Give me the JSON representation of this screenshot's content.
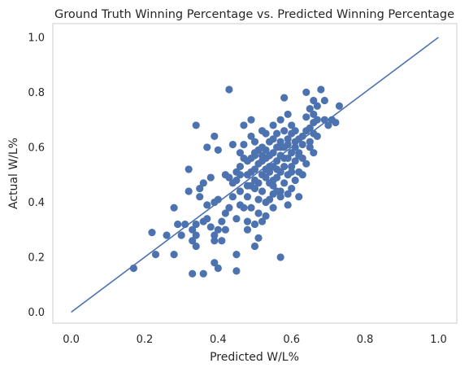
{
  "chart_data": {
    "type": "scatter",
    "title": "Ground Truth Winning Percentage vs. Predicted Winning Percentage",
    "xlabel": "Predicted W/L%",
    "ylabel": "Actual W/L%",
    "xlim": [
      -0.05,
      1.05
    ],
    "ylim": [
      -0.04,
      1.05
    ],
    "xticks": [
      "0.0",
      "0.2",
      "0.4",
      "0.6",
      "0.8",
      "1.0"
    ],
    "yticks": [
      "0.0",
      "0.2",
      "0.4",
      "0.6",
      "0.8",
      "1.0"
    ],
    "grid": false,
    "legend": false,
    "colors": {
      "points": "#4c72b0",
      "line": "#4c72b0",
      "frame": "#cccccc",
      "text": "#262626"
    },
    "reference_line": {
      "x": [
        0.0,
        1.0
      ],
      "y": [
        0.0,
        1.0
      ]
    },
    "points": [
      [
        0.17,
        0.16
      ],
      [
        0.22,
        0.29
      ],
      [
        0.23,
        0.21
      ],
      [
        0.26,
        0.28
      ],
      [
        0.28,
        0.21
      ],
      [
        0.28,
        0.38
      ],
      [
        0.29,
        0.32
      ],
      [
        0.3,
        0.28
      ],
      [
        0.31,
        0.32
      ],
      [
        0.32,
        0.44
      ],
      [
        0.32,
        0.52
      ],
      [
        0.33,
        0.14
      ],
      [
        0.33,
        0.26
      ],
      [
        0.33,
        0.3
      ],
      [
        0.34,
        0.24
      ],
      [
        0.34,
        0.28
      ],
      [
        0.34,
        0.32
      ],
      [
        0.34,
        0.68
      ],
      [
        0.35,
        0.42
      ],
      [
        0.35,
        0.45
      ],
      [
        0.36,
        0.14
      ],
      [
        0.36,
        0.33
      ],
      [
        0.36,
        0.47
      ],
      [
        0.37,
        0.34
      ],
      [
        0.37,
        0.39
      ],
      [
        0.37,
        0.6
      ],
      [
        0.38,
        0.31
      ],
      [
        0.38,
        0.49
      ],
      [
        0.39,
        0.18
      ],
      [
        0.39,
        0.26
      ],
      [
        0.39,
        0.28
      ],
      [
        0.39,
        0.4
      ],
      [
        0.39,
        0.64
      ],
      [
        0.4,
        0.16
      ],
      [
        0.4,
        0.3
      ],
      [
        0.4,
        0.41
      ],
      [
        0.4,
        0.59
      ],
      [
        0.41,
        0.26
      ],
      [
        0.42,
        0.3
      ],
      [
        0.42,
        0.36
      ],
      [
        0.42,
        0.5
      ],
      [
        0.43,
        0.81
      ],
      [
        0.43,
        0.49
      ],
      [
        0.44,
        0.42
      ],
      [
        0.44,
        0.61
      ],
      [
        0.45,
        0.15
      ],
      [
        0.45,
        0.21
      ],
      [
        0.45,
        0.34
      ],
      [
        0.45,
        0.51
      ],
      [
        0.46,
        0.39
      ],
      [
        0.46,
        0.44
      ],
      [
        0.46,
        0.5
      ],
      [
        0.46,
        0.53
      ],
      [
        0.47,
        0.56
      ],
      [
        0.47,
        0.61
      ],
      [
        0.47,
        0.68
      ],
      [
        0.48,
        0.3
      ],
      [
        0.48,
        0.33
      ],
      [
        0.48,
        0.42
      ],
      [
        0.48,
        0.46
      ],
      [
        0.48,
        0.5
      ],
      [
        0.49,
        0.38
      ],
      [
        0.49,
        0.51
      ],
      [
        0.49,
        0.56
      ],
      [
        0.49,
        0.64
      ],
      [
        0.49,
        0.7
      ],
      [
        0.5,
        0.24
      ],
      [
        0.5,
        0.32
      ],
      [
        0.5,
        0.45
      ],
      [
        0.5,
        0.48
      ],
      [
        0.5,
        0.52
      ],
      [
        0.5,
        0.57
      ],
      [
        0.5,
        0.62
      ],
      [
        0.51,
        0.27
      ],
      [
        0.51,
        0.41
      ],
      [
        0.51,
        0.47
      ],
      [
        0.51,
        0.54
      ],
      [
        0.51,
        0.59
      ],
      [
        0.52,
        0.33
      ],
      [
        0.52,
        0.44
      ],
      [
        0.52,
        0.5
      ],
      [
        0.52,
        0.55
      ],
      [
        0.52,
        0.6
      ],
      [
        0.53,
        0.35
      ],
      [
        0.53,
        0.49
      ],
      [
        0.53,
        0.52
      ],
      [
        0.53,
        0.56
      ],
      [
        0.53,
        0.65
      ],
      [
        0.54,
        0.41
      ],
      [
        0.54,
        0.47
      ],
      [
        0.54,
        0.51
      ],
      [
        0.54,
        0.57
      ],
      [
        0.54,
        0.62
      ],
      [
        0.55,
        0.38
      ],
      [
        0.55,
        0.43
      ],
      [
        0.55,
        0.48
      ],
      [
        0.55,
        0.53
      ],
      [
        0.55,
        0.58
      ],
      [
        0.55,
        0.68
      ],
      [
        0.56,
        0.44
      ],
      [
        0.56,
        0.49
      ],
      [
        0.56,
        0.55
      ],
      [
        0.56,
        0.6
      ],
      [
        0.56,
        0.65
      ],
      [
        0.57,
        0.2
      ],
      [
        0.57,
        0.42
      ],
      [
        0.57,
        0.51
      ],
      [
        0.57,
        0.57
      ],
      [
        0.57,
        0.62
      ],
      [
        0.57,
        0.7
      ],
      [
        0.58,
        0.47
      ],
      [
        0.58,
        0.53
      ],
      [
        0.58,
        0.6
      ],
      [
        0.58,
        0.66
      ],
      [
        0.58,
        0.78
      ],
      [
        0.59,
        0.43
      ],
      [
        0.59,
        0.5
      ],
      [
        0.59,
        0.56
      ],
      [
        0.59,
        0.63
      ],
      [
        0.59,
        0.72
      ],
      [
        0.6,
        0.45
      ],
      [
        0.6,
        0.53
      ],
      [
        0.6,
        0.58
      ],
      [
        0.6,
        0.65
      ],
      [
        0.6,
        0.68
      ],
      [
        0.61,
        0.48
      ],
      [
        0.61,
        0.55
      ],
      [
        0.61,
        0.62
      ],
      [
        0.61,
        0.66
      ],
      [
        0.62,
        0.42
      ],
      [
        0.62,
        0.51
      ],
      [
        0.62,
        0.58
      ],
      [
        0.62,
        0.63
      ],
      [
        0.63,
        0.5
      ],
      [
        0.63,
        0.56
      ],
      [
        0.63,
        0.61
      ],
      [
        0.64,
        0.54
      ],
      [
        0.64,
        0.71
      ],
      [
        0.64,
        0.8
      ],
      [
        0.65,
        0.6
      ],
      [
        0.65,
        0.67
      ],
      [
        0.65,
        0.74
      ],
      [
        0.66,
        0.58
      ],
      [
        0.66,
        0.65
      ],
      [
        0.66,
        0.69
      ],
      [
        0.66,
        0.72
      ],
      [
        0.66,
        0.77
      ],
      [
        0.67,
        0.64
      ],
      [
        0.67,
        0.7
      ],
      [
        0.67,
        0.75
      ],
      [
        0.68,
        0.81
      ],
      [
        0.69,
        0.7
      ],
      [
        0.69,
        0.77
      ],
      [
        0.7,
        0.68
      ],
      [
        0.71,
        0.7
      ],
      [
        0.72,
        0.69
      ],
      [
        0.73,
        0.75
      ],
      [
        0.52,
        0.57
      ],
      [
        0.53,
        0.59
      ],
      [
        0.55,
        0.63
      ],
      [
        0.57,
        0.6
      ],
      [
        0.59,
        0.61
      ],
      [
        0.61,
        0.6
      ],
      [
        0.44,
        0.47
      ],
      [
        0.46,
        0.58
      ],
      [
        0.48,
        0.55
      ],
      [
        0.5,
        0.58
      ],
      [
        0.52,
        0.66
      ],
      [
        0.54,
        0.53
      ],
      [
        0.56,
        0.52
      ],
      [
        0.58,
        0.56
      ],
      [
        0.6,
        0.51
      ],
      [
        0.62,
        0.57
      ],
      [
        0.64,
        0.66
      ],
      [
        0.41,
        0.33
      ],
      [
        0.43,
        0.38
      ],
      [
        0.45,
        0.48
      ],
      [
        0.47,
        0.38
      ],
      [
        0.49,
        0.46
      ],
      [
        0.51,
        0.36
      ],
      [
        0.53,
        0.4
      ],
      [
        0.55,
        0.46
      ],
      [
        0.57,
        0.44
      ],
      [
        0.59,
        0.39
      ],
      [
        0.63,
        0.64
      ],
      [
        0.65,
        0.62
      ]
    ]
  }
}
